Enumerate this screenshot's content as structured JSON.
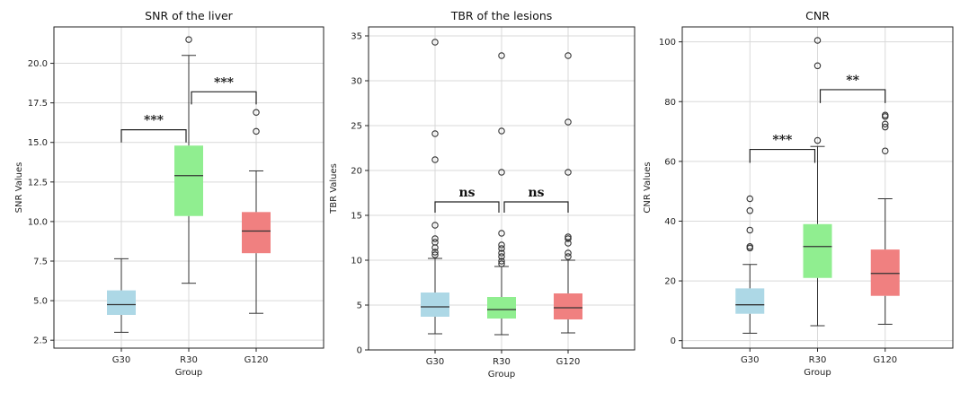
{
  "chart_data": [
    {
      "type": "box",
      "title": "SNR of the liver",
      "xlabel": "Group",
      "ylabel": "SNR Values",
      "categories": [
        "G30",
        "R30",
        "G120"
      ],
      "colors": [
        "#add8e6",
        "#90ee90",
        "#f08080"
      ],
      "ylim": [
        2.0,
        22.3
      ],
      "yticks": [
        "2.5",
        "5.0",
        "7.5",
        "10.0",
        "12.5",
        "15.0",
        "17.5",
        "20.0"
      ],
      "grid": true,
      "boxes": [
        {
          "whisker_low": 3.0,
          "q1": 4.1,
          "median": 4.75,
          "q3": 5.65,
          "whisker_high": 7.65,
          "outliers": []
        },
        {
          "whisker_low": 6.1,
          "q1": 10.35,
          "median": 12.9,
          "q3": 14.8,
          "whisker_high": 20.5,
          "outliers": [
            21.5
          ]
        },
        {
          "whisker_low": 4.2,
          "q1": 8.0,
          "median": 9.4,
          "q3": 10.6,
          "whisker_high": 13.2,
          "outliers": [
            15.7,
            16.9
          ]
        }
      ],
      "significance": [
        {
          "from": 0,
          "to": 1,
          "y": 15.8,
          "drop": 0.8,
          "label": "***"
        },
        {
          "from": 1,
          "to": 2,
          "y": 18.2,
          "drop": 0.8,
          "label": "***"
        }
      ]
    },
    {
      "type": "box",
      "title": "TBR of the lesions",
      "xlabel": "Group",
      "ylabel": "TBR Values",
      "categories": [
        "G30",
        "R30",
        "G120"
      ],
      "colors": [
        "#add8e6",
        "#90ee90",
        "#f08080"
      ],
      "ylim": [
        0,
        36.0
      ],
      "yticks": [
        "0",
        "5",
        "10",
        "15",
        "20",
        "25",
        "30",
        "35"
      ],
      "grid": true,
      "boxes": [
        {
          "whisker_low": 1.8,
          "q1": 3.7,
          "median": 4.8,
          "q3": 6.4,
          "whisker_high": 10.2,
          "outliers": [
            10.6,
            10.9,
            11.4,
            12.0,
            12.4,
            13.9,
            21.2,
            24.1,
            34.3
          ]
        },
        {
          "whisker_low": 1.7,
          "q1": 3.5,
          "median": 4.5,
          "q3": 5.9,
          "whisker_high": 9.3,
          "outliers": [
            9.6,
            9.9,
            10.4,
            10.8,
            11.3,
            11.7,
            13.0,
            19.8,
            24.4,
            32.8
          ]
        },
        {
          "whisker_low": 1.9,
          "q1": 3.4,
          "median": 4.7,
          "q3": 6.3,
          "whisker_high": 10.0,
          "outliers": [
            10.4,
            10.8,
            11.9,
            12.4,
            12.6,
            19.8,
            25.4,
            32.8
          ]
        }
      ],
      "significance": [
        {
          "from": 0,
          "to": 1,
          "y": 16.5,
          "drop": 1.2,
          "label": "ns"
        },
        {
          "from": 1,
          "to": 2,
          "y": 16.5,
          "drop": 1.2,
          "label": "ns"
        }
      ]
    },
    {
      "type": "box",
      "title": "CNR",
      "xlabel": "Group",
      "ylabel": "CNR Values",
      "categories": [
        "G30",
        "R30",
        "G120"
      ],
      "colors": [
        "#add8e6",
        "#90ee90",
        "#f08080"
      ],
      "ylim": [
        -2.5,
        105.0
      ],
      "yticks": [
        "0",
        "20",
        "40",
        "60",
        "80",
        "100"
      ],
      "grid": true,
      "boxes": [
        {
          "whisker_low": 2.5,
          "q1": 9.0,
          "median": 12.0,
          "q3": 17.5,
          "whisker_high": 25.5,
          "outliers": [
            31.0,
            31.5,
            37.0,
            43.5,
            47.5
          ]
        },
        {
          "whisker_low": 5.0,
          "q1": 21.0,
          "median": 31.5,
          "q3": 39.0,
          "whisker_high": 65.0,
          "outliers": [
            67.0,
            92.0,
            100.5
          ]
        },
        {
          "whisker_low": 5.5,
          "q1": 15.0,
          "median": 22.5,
          "q3": 30.5,
          "whisker_high": 47.5,
          "outliers": [
            63.5,
            71.5,
            72.5,
            75.0,
            75.5
          ]
        }
      ],
      "significance": [
        {
          "from": 0,
          "to": 1,
          "y": 64.0,
          "drop": 4.5,
          "label": "***"
        },
        {
          "from": 1,
          "to": 2,
          "y": 84.0,
          "drop": 4.5,
          "label": "**"
        }
      ]
    }
  ]
}
